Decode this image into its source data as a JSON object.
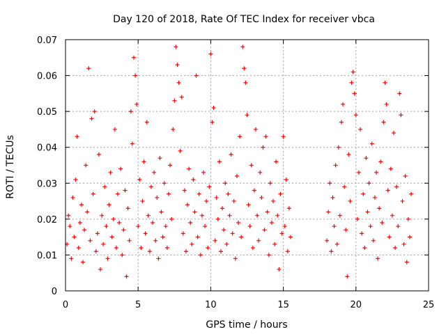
{
  "chart_data": {
    "type": "scatter",
    "title": "Day 120 of 2018, Rate Of TEC Index for receiver vbca",
    "xlabel": "GPS time / hours",
    "ylabel": "ROTI / TECUs",
    "xlim": [
      0,
      25
    ],
    "ylim": [
      0,
      0.07
    ],
    "xticks": [
      0,
      5,
      10,
      15,
      20,
      25
    ],
    "xtick_labels": [
      "0",
      "5",
      "10",
      "15",
      "20",
      "25"
    ],
    "yticks": [
      0,
      0.01,
      0.02,
      0.03,
      0.04,
      0.05,
      0.06,
      0.07
    ],
    "ytick_labels": [
      "0",
      "0.01",
      "0.02",
      "0.03",
      "0.04",
      "0.05",
      "0.06",
      "0.07"
    ],
    "grid": true,
    "marker": "+",
    "color": "#ff0000",
    "data_coverage_hours": [
      [
        0,
        15.6
      ],
      [
        17.9,
        23.9
      ]
    ],
    "series": [
      {
        "name": "vbca",
        "points": [
          [
            0.1,
            0.013
          ],
          [
            0.2,
            0.021
          ],
          [
            0.3,
            0.018
          ],
          [
            0.4,
            0.009
          ],
          [
            0.5,
            0.026
          ],
          [
            0.6,
            0.015
          ],
          [
            0.7,
            0.031
          ],
          [
            0.8,
            0.043
          ],
          [
            0.9,
            0.012
          ],
          [
            1.0,
            0.019
          ],
          [
            1.1,
            0.024
          ],
          [
            1.2,
            0.008
          ],
          [
            1.3,
            0.017
          ],
          [
            1.4,
            0.035
          ],
          [
            1.5,
            0.022
          ],
          [
            1.6,
            0.062
          ],
          [
            1.7,
            0.014
          ],
          [
            1.8,
            0.048
          ],
          [
            1.9,
            0.027
          ],
          [
            2.0,
            0.05
          ],
          [
            2.1,
            0.011
          ],
          [
            2.2,
            0.016
          ],
          [
            2.3,
            0.038
          ],
          [
            2.4,
            0.006
          ],
          [
            2.5,
            0.021
          ],
          [
            2.6,
            0.013
          ],
          [
            2.7,
            0.029
          ],
          [
            2.8,
            0.018
          ],
          [
            2.9,
            0.009
          ],
          [
            3.0,
            0.024
          ],
          [
            3.1,
            0.033
          ],
          [
            3.2,
            0.015
          ],
          [
            3.3,
            0.02
          ],
          [
            3.4,
            0.045
          ],
          [
            3.5,
            0.012
          ],
          [
            3.6,
            0.027
          ],
          [
            3.7,
            0.019
          ],
          [
            3.8,
            0.034
          ],
          [
            3.9,
            0.01
          ],
          [
            4.0,
            0.017
          ],
          [
            4.1,
            0.028
          ],
          [
            4.2,
            0.004
          ],
          [
            4.3,
            0.023
          ],
          [
            4.4,
            0.014
          ],
          [
            4.5,
            0.05
          ],
          [
            4.6,
            0.041
          ],
          [
            4.7,
            0.065
          ],
          [
            4.8,
            0.06
          ],
          [
            4.9,
            0.052
          ],
          [
            5.0,
            0.018
          ],
          [
            5.1,
            0.031
          ],
          [
            5.2,
            0.012
          ],
          [
            5.3,
            0.025
          ],
          [
            5.4,
            0.036
          ],
          [
            5.5,
            0.016
          ],
          [
            5.6,
            0.047
          ],
          [
            5.7,
            0.021
          ],
          [
            5.8,
            0.011
          ],
          [
            5.9,
            0.029
          ],
          [
            6.0,
            0.019
          ],
          [
            6.1,
            0.033
          ],
          [
            6.2,
            0.014
          ],
          [
            6.3,
            0.026
          ],
          [
            6.4,
            0.009
          ],
          [
            6.5,
            0.037
          ],
          [
            6.6,
            0.022
          ],
          [
            6.7,
            0.015
          ],
          [
            6.8,
            0.03
          ],
          [
            6.9,
            0.018
          ],
          [
            7.0,
            0.012
          ],
          [
            7.1,
            0.027
          ],
          [
            7.2,
            0.035
          ],
          [
            7.3,
            0.02
          ],
          [
            7.4,
            0.045
          ],
          [
            7.5,
            0.053
          ],
          [
            7.6,
            0.068
          ],
          [
            7.7,
            0.063
          ],
          [
            7.8,
            0.058
          ],
          [
            7.9,
            0.039
          ],
          [
            8.0,
            0.054
          ],
          [
            8.1,
            0.016
          ],
          [
            8.2,
            0.028
          ],
          [
            8.3,
            0.011
          ],
          [
            8.4,
            0.024
          ],
          [
            8.5,
            0.034
          ],
          [
            8.6,
            0.019
          ],
          [
            8.7,
            0.013
          ],
          [
            8.8,
            0.031
          ],
          [
            8.9,
            0.022
          ],
          [
            9.0,
            0.06
          ],
          [
            9.1,
            0.015
          ],
          [
            9.2,
            0.027
          ],
          [
            9.3,
            0.01
          ],
          [
            9.4,
            0.021
          ],
          [
            9.5,
            0.033
          ],
          [
            9.6,
            0.018
          ],
          [
            9.7,
            0.025
          ],
          [
            9.8,
            0.012
          ],
          [
            9.9,
            0.029
          ],
          [
            10.0,
            0.066
          ],
          [
            10.1,
            0.047
          ],
          [
            10.2,
            0.051
          ],
          [
            10.3,
            0.014
          ],
          [
            10.4,
            0.026
          ],
          [
            10.5,
            0.02
          ],
          [
            10.6,
            0.036
          ],
          [
            10.7,
            0.011
          ],
          [
            10.8,
            0.023
          ],
          [
            10.9,
            0.017
          ],
          [
            11.0,
            0.03
          ],
          [
            11.1,
            0.013
          ],
          [
            11.2,
            0.027
          ],
          [
            11.3,
            0.021
          ],
          [
            11.4,
            0.038
          ],
          [
            11.5,
            0.016
          ],
          [
            11.6,
            0.025
          ],
          [
            11.7,
            0.009
          ],
          [
            11.8,
            0.032
          ],
          [
            11.9,
            0.019
          ],
          [
            12.0,
            0.043
          ],
          [
            12.1,
            0.015
          ],
          [
            12.2,
            0.068
          ],
          [
            12.3,
            0.062
          ],
          [
            12.4,
            0.058
          ],
          [
            12.5,
            0.049
          ],
          [
            12.6,
            0.024
          ],
          [
            12.7,
            0.018
          ],
          [
            12.8,
            0.035
          ],
          [
            12.9,
            0.012
          ],
          [
            13.0,
            0.028
          ],
          [
            13.1,
            0.045
          ],
          [
            13.2,
            0.021
          ],
          [
            13.3,
            0.014
          ],
          [
            13.4,
            0.033
          ],
          [
            13.5,
            0.026
          ],
          [
            13.6,
            0.04
          ],
          [
            13.7,
            0.017
          ],
          [
            13.8,
            0.043
          ],
          [
            13.9,
            0.022
          ],
          [
            14.0,
            0.01
          ],
          [
            14.1,
            0.03
          ],
          [
            14.2,
            0.019
          ],
          [
            14.3,
            0.025
          ],
          [
            14.4,
            0.013
          ],
          [
            14.5,
            0.036
          ],
          [
            14.6,
            0.021
          ],
          [
            14.7,
            0.006
          ],
          [
            14.8,
            0.027
          ],
          [
            14.9,
            0.016
          ],
          [
            15.0,
            0.043
          ],
          [
            15.1,
            0.018
          ],
          [
            15.2,
            0.031
          ],
          [
            15.3,
            0.011
          ],
          [
            15.4,
            0.023
          ],
          [
            15.5,
            0.015
          ],
          [
            18.0,
            0.014
          ],
          [
            18.1,
            0.022
          ],
          [
            18.2,
            0.03
          ],
          [
            18.3,
            0.011
          ],
          [
            18.4,
            0.026
          ],
          [
            18.5,
            0.018
          ],
          [
            18.6,
            0.035
          ],
          [
            18.7,
            0.013
          ],
          [
            18.8,
            0.04
          ],
          [
            18.9,
            0.021
          ],
          [
            19.0,
            0.047
          ],
          [
            19.1,
            0.052
          ],
          [
            19.2,
            0.029
          ],
          [
            19.3,
            0.017
          ],
          [
            19.4,
            0.004
          ],
          [
            19.5,
            0.038
          ],
          [
            19.6,
            0.025
          ],
          [
            19.7,
            0.058
          ],
          [
            19.8,
            0.061
          ],
          [
            19.9,
            0.055
          ],
          [
            20.0,
            0.049
          ],
          [
            20.1,
            0.02
          ],
          [
            20.2,
            0.033
          ],
          [
            20.3,
            0.045
          ],
          [
            20.4,
            0.016
          ],
          [
            20.5,
            0.027
          ],
          [
            20.6,
            0.012
          ],
          [
            20.7,
            0.037
          ],
          [
            20.8,
            0.022
          ],
          [
            20.9,
            0.03
          ],
          [
            21.0,
            0.018
          ],
          [
            21.1,
            0.041
          ],
          [
            21.2,
            0.014
          ],
          [
            21.3,
            0.026
          ],
          [
            21.4,
            0.033
          ],
          [
            21.5,
            0.009
          ],
          [
            21.6,
            0.023
          ],
          [
            21.7,
            0.036
          ],
          [
            21.8,
            0.019
          ],
          [
            21.9,
            0.047
          ],
          [
            22.0,
            0.058
          ],
          [
            22.1,
            0.052
          ],
          [
            22.2,
            0.028
          ],
          [
            22.3,
            0.015
          ],
          [
            22.4,
            0.034
          ],
          [
            22.5,
            0.021
          ],
          [
            22.6,
            0.044
          ],
          [
            22.7,
            0.012
          ],
          [
            22.8,
            0.029
          ],
          [
            22.9,
            0.018
          ],
          [
            23.0,
            0.055
          ],
          [
            23.1,
            0.049
          ],
          [
            23.2,
            0.025
          ],
          [
            23.3,
            0.013
          ],
          [
            23.4,
            0.032
          ],
          [
            23.5,
            0.008
          ],
          [
            23.6,
            0.02
          ],
          [
            23.7,
            0.015
          ],
          [
            23.8,
            0.027
          ]
        ]
      }
    ]
  }
}
